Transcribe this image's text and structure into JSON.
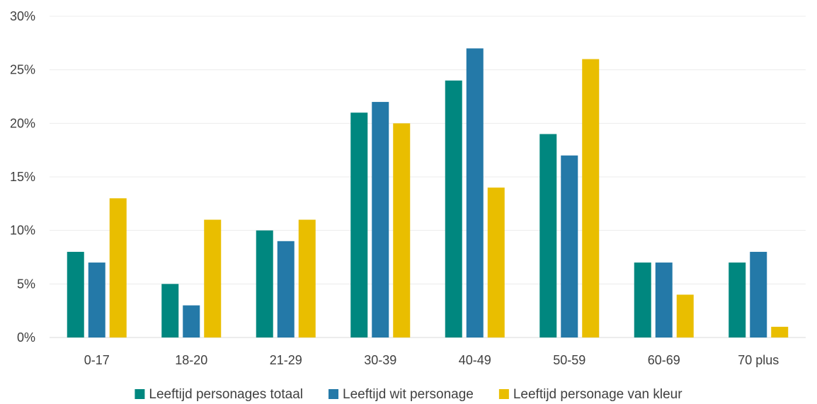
{
  "chart_data": {
    "type": "bar",
    "categories": [
      "0-17",
      "18-20",
      "21-29",
      "30-39",
      "40-49",
      "50-59",
      "60-69",
      "70 plus"
    ],
    "series": [
      {
        "name": "Leeftijd personages totaal",
        "color": "#00877F",
        "values": [
          8,
          5,
          10,
          21,
          24,
          19,
          7,
          7
        ]
      },
      {
        "name": "Leeftijd wit personage",
        "color": "#2479A8",
        "values": [
          7,
          3,
          9,
          22,
          27,
          17,
          7,
          8
        ]
      },
      {
        "name": "Leeftijd personage van kleur",
        "color": "#E9BE00",
        "values": [
          13,
          11,
          11,
          20,
          14,
          26,
          4,
          1
        ]
      }
    ],
    "yticks": [
      "0%",
      "5%",
      "10%",
      "15%",
      "20%",
      "25%",
      "30%"
    ],
    "ylim": [
      0,
      30
    ],
    "grid": true,
    "legend_position": "bottom"
  }
}
